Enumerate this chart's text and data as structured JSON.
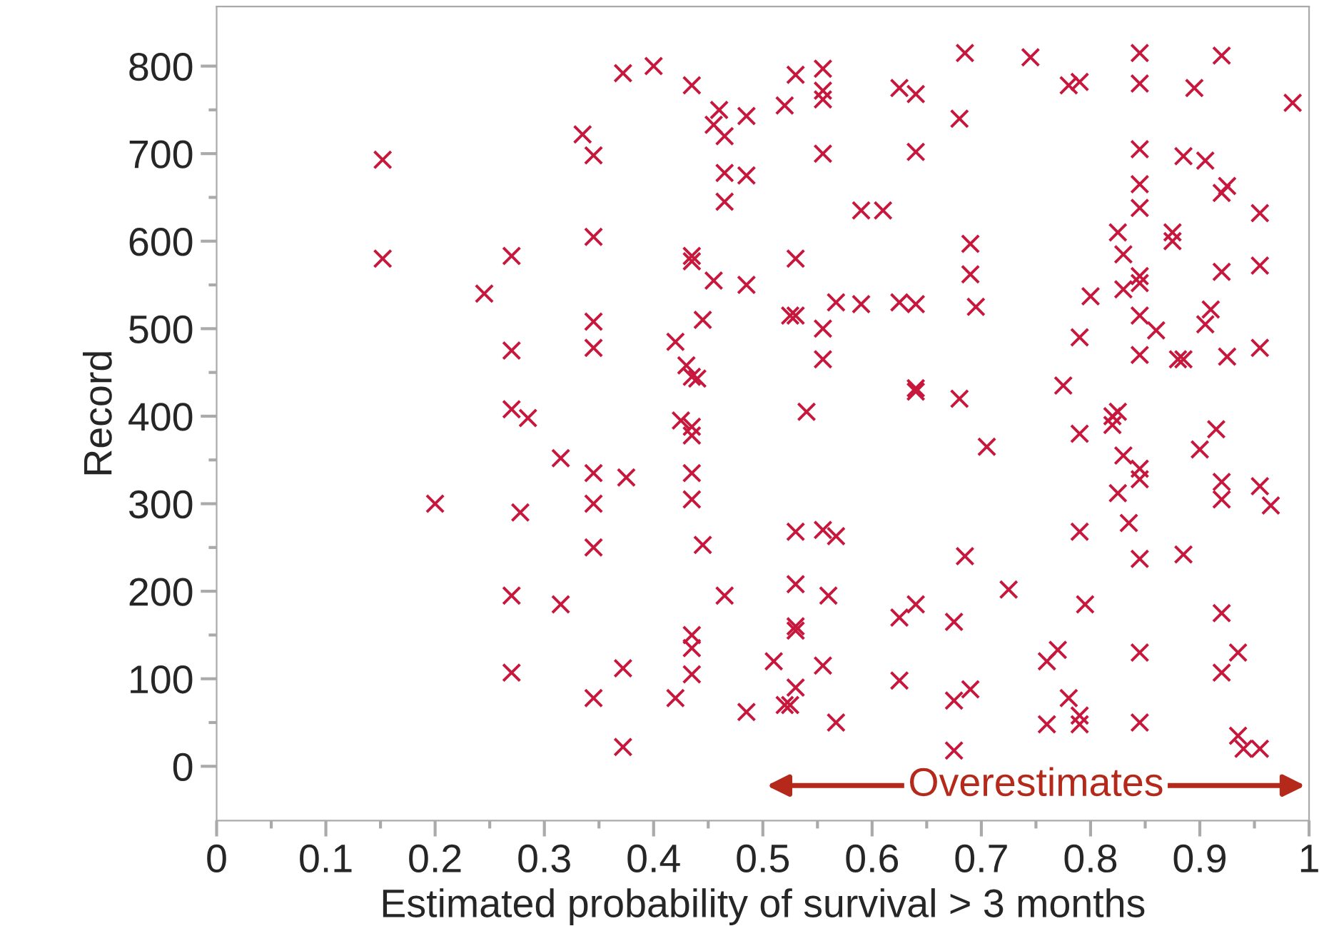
{
  "chart_data": {
    "type": "scatter",
    "xlabel": "Estimated probability of survival > 3 months",
    "ylabel": "Record",
    "xlim": [
      0,
      1
    ],
    "ylim": [
      -62,
      868
    ],
    "xticks": [
      0,
      0.1,
      0.2,
      0.3,
      0.4,
      0.5,
      0.6,
      0.7,
      0.8,
      0.9,
      {
        "value": 1,
        "label": "1"
      }
    ],
    "yticks": [
      0,
      100,
      200,
      300,
      400,
      500,
      600,
      700,
      800
    ],
    "grid": false,
    "marker": "cross",
    "annotations": [
      "Overestimates"
    ],
    "series": [
      {
        "color": "#c8173c",
        "x": [
          0.152,
          0.152,
          0.2,
          0.245,
          0.27,
          0.27,
          0.27,
          0.285,
          0.27,
          0.27,
          0.278,
          0.315,
          0.315,
          0.335,
          0.345,
          0.345,
          0.345,
          0.345,
          0.345,
          0.345,
          0.345,
          0.345,
          0.372,
          0.375,
          0.372,
          0.372,
          0.4,
          0.42,
          0.425,
          0.43,
          0.435,
          0.435,
          0.435,
          0.435,
          0.44,
          0.435,
          0.435,
          0.435,
          0.435,
          0.435,
          0.435,
          0.435,
          0.42,
          0.445,
          0.445,
          0.455,
          0.455,
          0.46,
          0.465,
          0.465,
          0.465,
          0.465,
          0.485,
          0.485,
          0.485,
          0.485,
          0.51,
          0.52,
          0.525,
          0.53,
          0.53,
          0.53,
          0.52,
          0.525,
          0.53,
          0.53,
          0.53,
          0.53,
          0.53,
          0.54,
          0.555,
          0.555,
          0.555,
          0.555,
          0.555,
          0.555,
          0.555,
          0.555,
          0.56,
          0.567,
          0.567,
          0.567,
          0.59,
          0.59,
          0.61,
          0.625,
          0.625,
          0.625,
          0.625,
          0.64,
          0.64,
          0.64,
          0.64,
          0.64,
          0.64,
          0.675,
          0.675,
          0.675,
          0.68,
          0.68,
          0.685,
          0.69,
          0.69,
          0.685,
          0.69,
          0.695,
          0.705,
          0.725,
          0.745,
          0.76,
          0.76,
          0.77,
          0.775,
          0.78,
          0.78,
          0.79,
          0.79,
          0.79,
          0.79,
          0.79,
          0.79,
          0.795,
          0.8,
          0.82,
          0.82,
          0.825,
          0.825,
          0.825,
          0.83,
          0.83,
          0.83,
          0.835,
          0.845,
          0.845,
          0.845,
          0.845,
          0.845,
          0.845,
          0.845,
          0.845,
          0.845,
          0.845,
          0.845,
          0.845,
          0.845,
          0.845,
          0.86,
          0.875,
          0.875,
          0.88,
          0.885,
          0.885,
          0.885,
          0.895,
          0.9,
          0.905,
          0.905,
          0.91,
          0.915,
          0.92,
          0.92,
          0.925,
          0.92,
          0.925,
          0.92,
          0.92,
          0.92,
          0.92,
          0.935,
          0.935,
          0.94,
          0.955,
          0.955,
          0.955,
          0.955,
          0.955,
          0.965,
          0.985
        ],
        "values": [
          693,
          580,
          300,
          540,
          583,
          475,
          408,
          398,
          195,
          107,
          290,
          352,
          185,
          722,
          698,
          605,
          508,
          478,
          335,
          300,
          250,
          78,
          792,
          330,
          112,
          22,
          800,
          485,
          395,
          458,
          778,
          583,
          577,
          445,
          443,
          388,
          378,
          335,
          305,
          150,
          135,
          105,
          78,
          510,
          253,
          733,
          555,
          750,
          720,
          678,
          645,
          195,
          743,
          675,
          550,
          62,
          120,
          755,
          515,
          515,
          580,
          790,
          70,
          70,
          160,
          155,
          208,
          268,
          90,
          405,
          797,
          772,
          762,
          700,
          500,
          465,
          270,
          115,
          195,
          530,
          263,
          50,
          635,
          528,
          635,
          775,
          530,
          170,
          98,
          768,
          702,
          528,
          432,
          428,
          185,
          165,
          75,
          18,
          740,
          420,
          815,
          597,
          562,
          240,
          88,
          525,
          365,
          202,
          810,
          120,
          48,
          133,
          435,
          778,
          78,
          782,
          490,
          380,
          268,
          58,
          48,
          185,
          537,
          390,
          400,
          405,
          610,
          312,
          585,
          545,
          355,
          278,
          815,
          780,
          705,
          665,
          638,
          560,
          552,
          515,
          470,
          340,
          328,
          237,
          130,
          50,
          498,
          610,
          600,
          465,
          465,
          242,
          697,
          775,
          362,
          692,
          505,
          522,
          385,
          812,
          655,
          663,
          565,
          468,
          325,
          305,
          175,
          107,
          130,
          35,
          20,
          632,
          572,
          478,
          320,
          20,
          298,
          758
        ]
      }
    ]
  }
}
